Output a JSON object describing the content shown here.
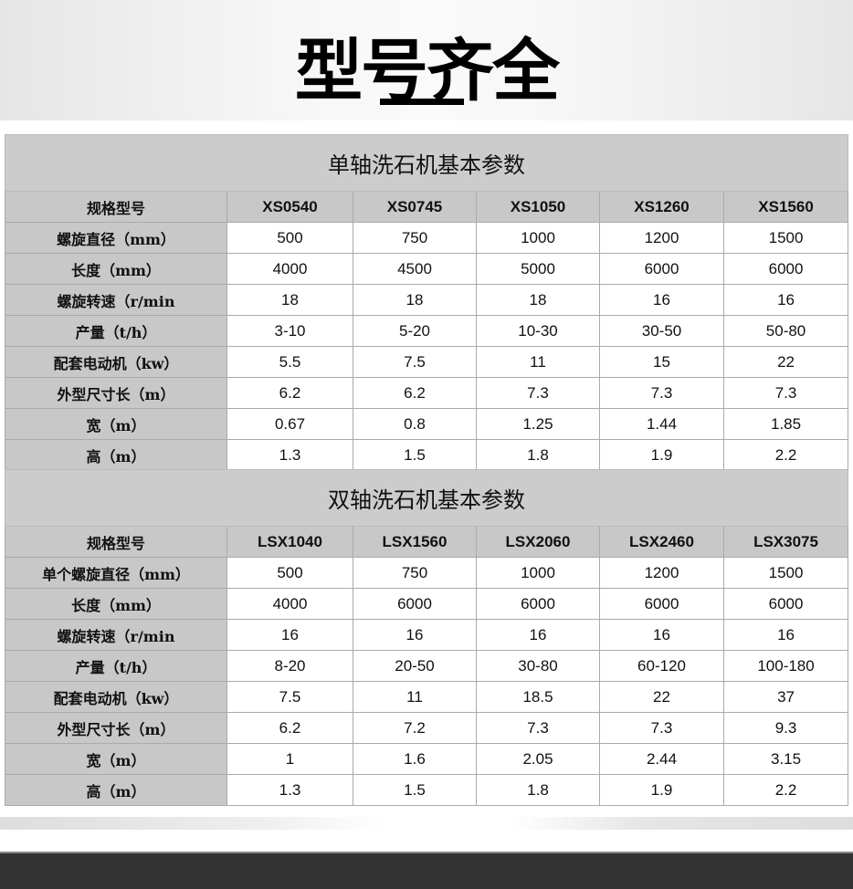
{
  "title": "型号齐全",
  "tables": [
    {
      "caption": "单轴洗石机基本参数",
      "header": [
        "规格型号",
        "XS0540",
        "XS0745",
        "XS1050",
        "XS1260",
        "XS1560"
      ],
      "rows": [
        [
          "螺旋直径（mm）",
          "500",
          "750",
          "1000",
          "1200",
          "1500"
        ],
        [
          "长度（mm）",
          "4000",
          "4500",
          "5000",
          "6000",
          "6000"
        ],
        [
          "螺旋转速（r/min",
          "18",
          "18",
          "18",
          "16",
          "16"
        ],
        [
          "产量（t/h）",
          "3-10",
          "5-20",
          "10-30",
          "30-50",
          "50-80"
        ],
        [
          "配套电动机（kw）",
          "5.5",
          "7.5",
          "11",
          "15",
          "22"
        ],
        [
          "外型尺寸长（m）",
          "6.2",
          "6.2",
          "7.3",
          "7.3",
          "7.3"
        ],
        [
          "宽（m）",
          "0.67",
          "0.8",
          "1.25",
          "1.44",
          "1.85"
        ],
        [
          "高（m）",
          "1.3",
          "1.5",
          "1.8",
          "1.9",
          "2.2"
        ]
      ]
    },
    {
      "caption": "双轴洗石机基本参数",
      "header": [
        "规格型号",
        "LSX1040",
        "LSX1560",
        "LSX2060",
        "LSX2460",
        "LSX3075"
      ],
      "rows": [
        [
          "单个螺旋直径（mm）",
          "500",
          "750",
          "1000",
          "1200",
          "1500"
        ],
        [
          "长度（mm）",
          "4000",
          "6000",
          "6000",
          "6000",
          "6000"
        ],
        [
          "螺旋转速（r/min",
          "16",
          "16",
          "16",
          "16",
          "16"
        ],
        [
          "产量（t/h）",
          "8-20",
          "20-50",
          "30-80",
          "60-120",
          "100-180"
        ],
        [
          "配套电动机（kw）",
          "7.5",
          "11",
          "18.5",
          "22",
          "37"
        ],
        [
          "外型尺寸长（m）",
          "6.2",
          "7.2",
          "7.3",
          "7.3",
          "9.3"
        ],
        [
          "宽（m）",
          "1",
          "1.6",
          "2.05",
          "2.44",
          "3.15"
        ],
        [
          "高（m）",
          "1.3",
          "1.5",
          "1.8",
          "1.9",
          "2.2"
        ]
      ]
    }
  ]
}
